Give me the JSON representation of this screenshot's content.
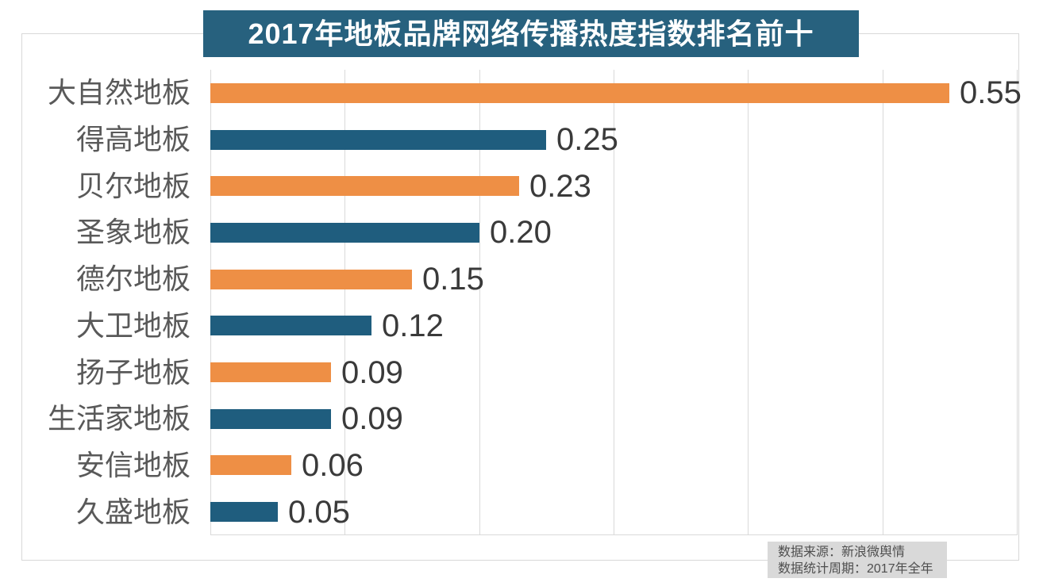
{
  "title": "2017年地板品牌网络传播热度指数排名前十",
  "source_note": {
    "line1": "数据来源：新浪微舆情",
    "line2": "数据统计周期：2017年全年"
  },
  "colors": {
    "orange": "#ee8f45",
    "blue": "#1f5d7e",
    "banner": "#27617e",
    "grid": "#d9d9d9",
    "frame": "#d8d8d8",
    "category_text": "#595959",
    "value_text": "#3a3a3a",
    "footer_bg": "#d9d9d9"
  },
  "chart_data": {
    "type": "bar",
    "orientation": "horizontal",
    "title": "2017年地板品牌网络传播热度指数排名前十",
    "categories": [
      "大自然地板",
      "得高地板",
      "贝尔地板",
      "圣象地板",
      "德尔地板",
      "大卫地板",
      "扬子地板",
      "生活家地板",
      "安信地板",
      "久盛地板"
    ],
    "values": [
      0.55,
      0.25,
      0.23,
      0.2,
      0.15,
      0.12,
      0.09,
      0.09,
      0.06,
      0.05
    ],
    "value_labels": [
      "0.55",
      "0.25",
      "0.23",
      "0.20",
      "0.15",
      "0.12",
      "0.09",
      "0.09",
      "0.06",
      "0.05"
    ],
    "bar_color_pattern": [
      "orange",
      "blue"
    ],
    "xlim": [
      0,
      0.6
    ],
    "gridline_step": 0.1,
    "grid": "vertical-gridlines-on",
    "legend": "none",
    "annotations": [
      "数据来源：新浪微舆情",
      "数据统计周期：2017年全年"
    ]
  }
}
